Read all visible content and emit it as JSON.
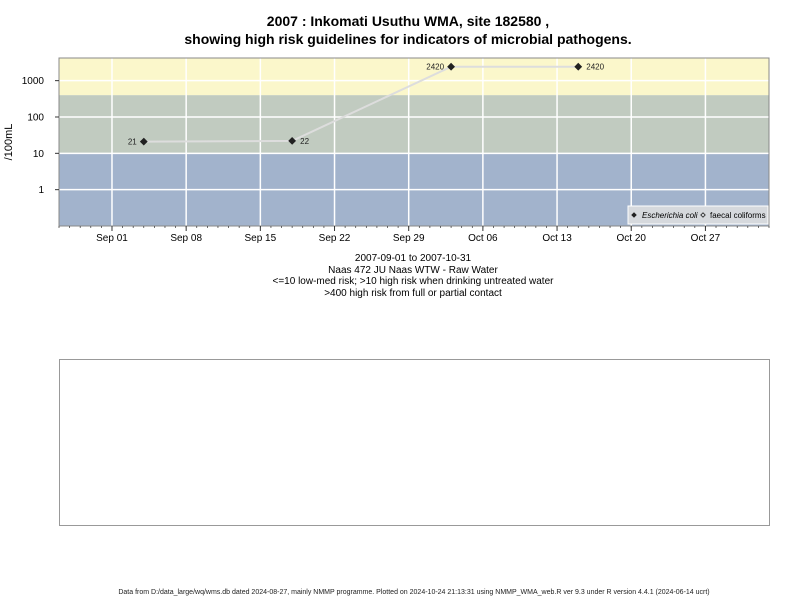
{
  "chart_data": {
    "type": "scatter",
    "title": "2007 : Inkomati Usuthu WMA, site 182580 ,",
    "subtitle": "showing high risk guidelines for indicators of microbial pathogens.",
    "ylabel": "/100mL",
    "xlabel_lines": [
      "2007-09-01 to 2007-10-31",
      "Naas 472 JU Naas WTW - Raw Water",
      "<=10 low-med risk; >10 high risk when drinking untreated water",
      ">400 high risk from full or partial contact"
    ],
    "y_scale": "log",
    "y_ticks": [
      1,
      10,
      100,
      1000
    ],
    "y_tick_labels": [
      "1",
      "10",
      "100",
      "1000"
    ],
    "ylim": [
      0.1,
      4200
    ],
    "xlim": [
      "2007-08-27",
      "2007-11-02"
    ],
    "x_ticks": [
      "2007-09-01",
      "2007-09-08",
      "2007-09-15",
      "2007-09-22",
      "2007-09-29",
      "2007-10-06",
      "2007-10-13",
      "2007-10-20",
      "2007-10-27"
    ],
    "x_tick_labels": [
      "Sep 01",
      "Sep 08",
      "Sep 15",
      "Sep 22",
      "Sep 29",
      "Oct 06",
      "Oct 13",
      "Oct 20",
      "Oct 27"
    ],
    "grid": true,
    "bands": [
      {
        "from": 0.1,
        "to": 10,
        "color": "#a2b3cc"
      },
      {
        "from": 10,
        "to": 400,
        "color": "#c1cbc0"
      },
      {
        "from": 400,
        "to": 4200,
        "color": "#fbf7cb"
      }
    ],
    "series": [
      {
        "name": "Escherichia coli",
        "marker": "diamond-filled",
        "color": "#222222",
        "line_color": "#dddddd",
        "x": [
          "2007-09-04",
          "2007-09-18",
          "2007-10-03",
          "2007-10-15"
        ],
        "y": [
          21,
          22,
          2420,
          2420
        ],
        "labels": [
          "21",
          "22",
          "2420",
          "2420"
        ]
      },
      {
        "name": "faecal coliforms",
        "marker": "diamond-open",
        "color": "#222222",
        "x": [],
        "y": []
      }
    ],
    "legend_position": "bottom-right"
  },
  "footer": "Data from D:/data_large/wq/wms.db dated 2024-08-27, mainly NMMP programme. Plotted on 2024-10-24 21:13:31 using NMMP_WMA_web.R ver 9.3 under R version 4.4.1 (2024-06-14 ucrt)"
}
